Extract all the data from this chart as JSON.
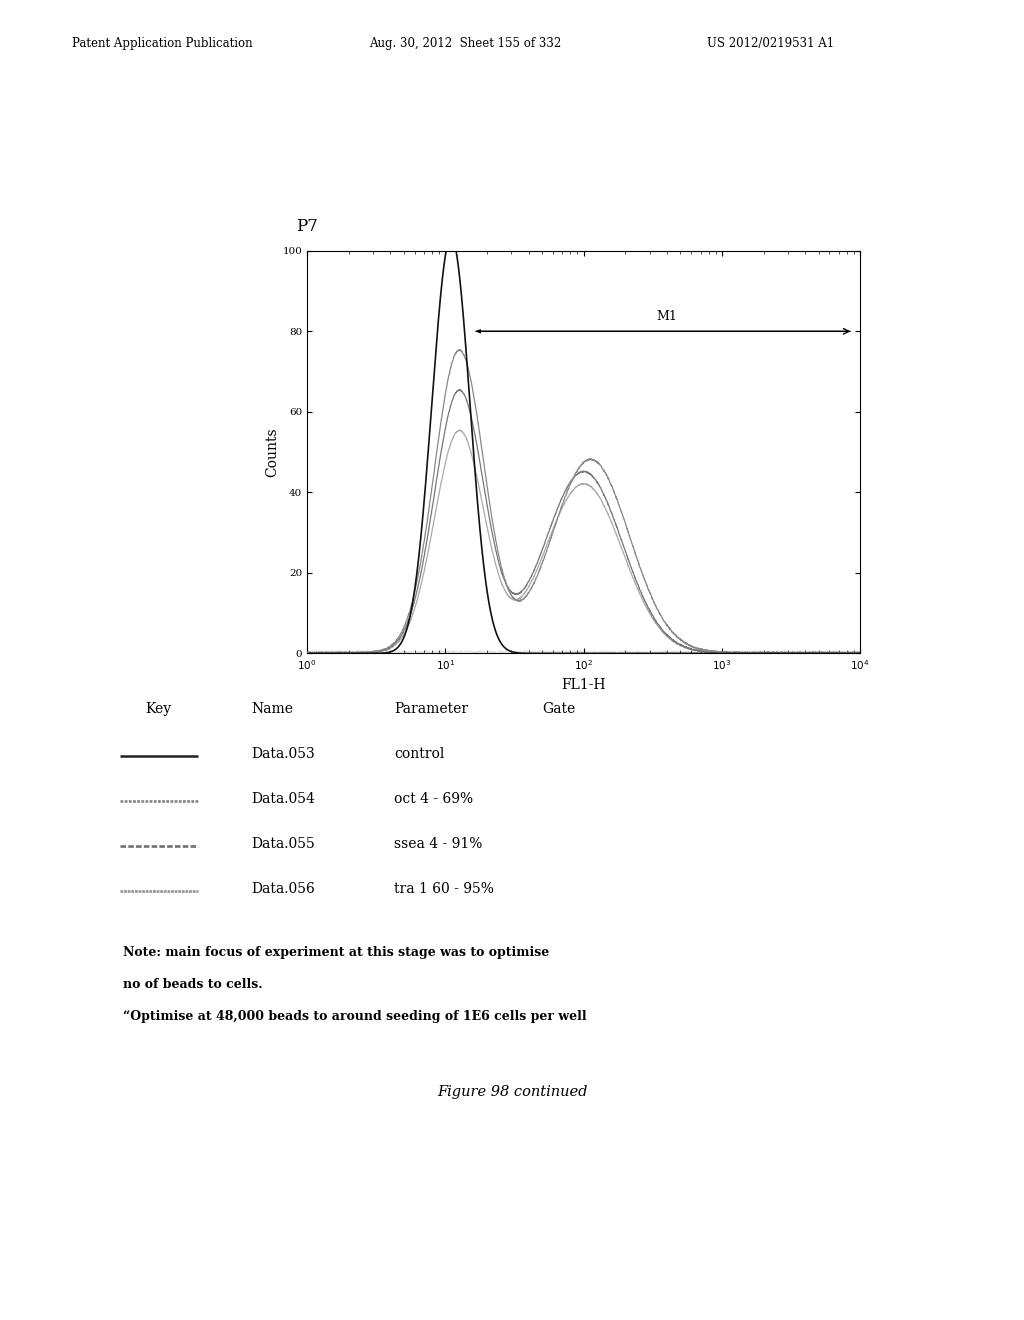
{
  "title": "P7",
  "xlabel": "FL1-H",
  "ylabel": "Counts",
  "ylim": [
    0,
    100
  ],
  "header_left": "Patent Application Publication",
  "header_mid": "Aug. 30, 2012  Sheet 155 of 332",
  "header_right": "US 2012/0219531 A1",
  "m1_label": "M1",
  "key_header": [
    "Key",
    "Name",
    "Parameter",
    "Gate"
  ],
  "key_rows": [
    {
      "name": "Data.053",
      "param": "control",
      "gate": ""
    },
    {
      "name": "Data.054",
      "param": "oct 4 - 69%",
      "gate": ""
    },
    {
      "name": "Data.055",
      "param": "ssea 4 - 91%",
      "gate": ""
    },
    {
      "name": "Data.056",
      "param": "tra 1 60 - 95%",
      "gate": ""
    }
  ],
  "note_line1": "Note: main focus of experiment at this stage was to optimise",
  "note_line2": "no of beads to cells.",
  "note_line3": "“Optimise at 48,000 beads to around seeding of 1E6 cells per well",
  "figure_caption": "Figure 98 continued",
  "bg_color": "#ffffff",
  "plot_bg": "#ffffff"
}
